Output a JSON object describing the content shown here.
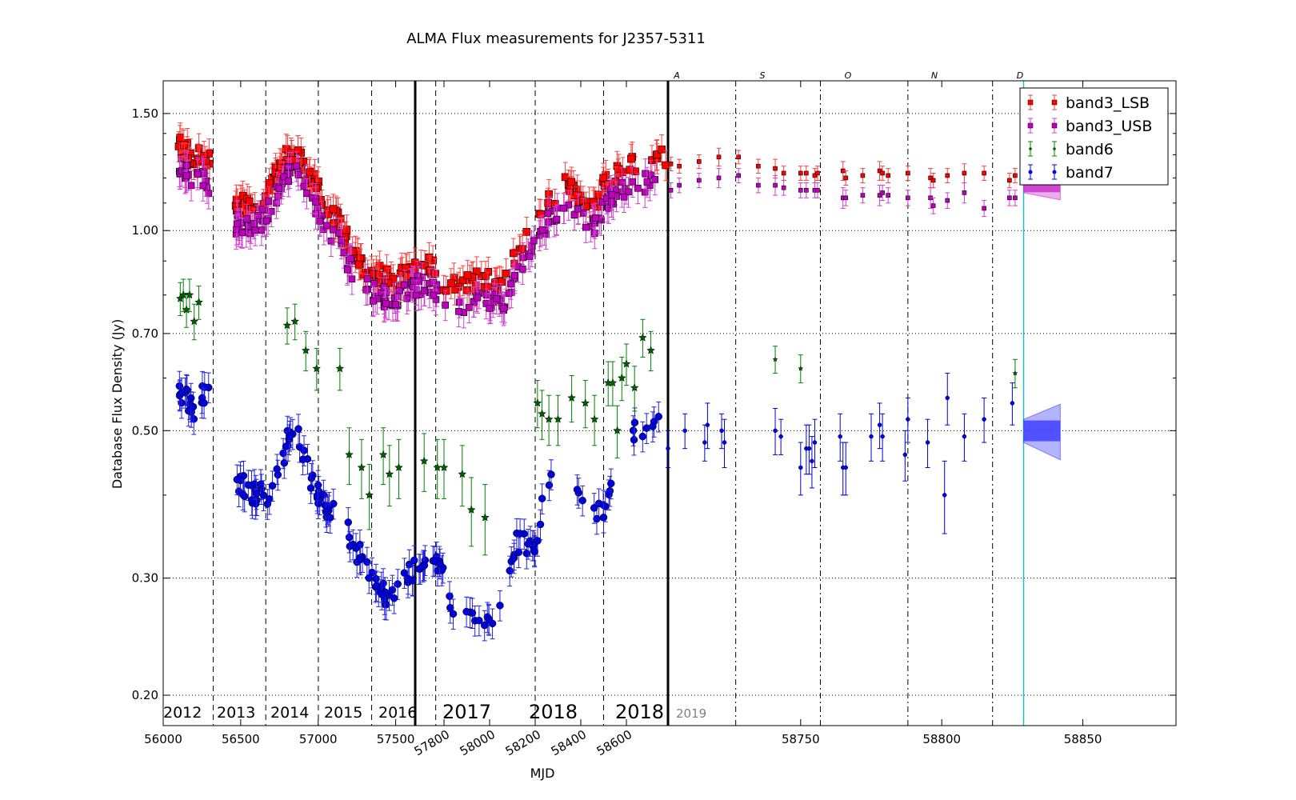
{
  "chart_data": {
    "type": "scatter",
    "title": "ALMA Flux measurements for J2357-5311",
    "xlabel": "MJD",
    "ylabel": "Database Flux Density (Jy)",
    "yscale": "log",
    "ylim": [
      0.18,
      1.68
    ],
    "ytick_labels": [
      "0.20",
      "0.30",
      "0.50",
      "0.70",
      "1.00",
      "1.50"
    ],
    "grid": "horizontal dotted",
    "legend_position": "top-right",
    "series": [
      {
        "name": "band3_LSB",
        "marker": "square",
        "color": "#ff0000",
        "err_color": "#ff4040",
        "recent": [
          [
            58704,
            1.26,
            0.03
          ],
          [
            58707,
            1.25,
            0.03
          ],
          [
            58714,
            1.27,
            0.03
          ],
          [
            58721,
            1.29,
            0.04
          ],
          [
            58728,
            1.29,
            0.03
          ],
          [
            58735,
            1.25,
            0.03
          ],
          [
            58741,
            1.24,
            0.04
          ],
          [
            58744,
            1.22,
            0.03
          ],
          [
            58750,
            1.22,
            0.03
          ],
          [
            58752,
            1.22,
            0.03
          ],
          [
            58755,
            1.21,
            0.03
          ],
          [
            58756,
            1.22,
            0.03
          ],
          [
            58765,
            1.23,
            0.04
          ],
          [
            58766,
            1.2,
            0.03
          ],
          [
            58772,
            1.21,
            0.03
          ],
          [
            58778,
            1.23,
            0.04
          ],
          [
            58779,
            1.22,
            0.03
          ],
          [
            58781,
            1.21,
            0.03
          ],
          [
            58788,
            1.22,
            0.03
          ],
          [
            58796,
            1.2,
            0.04
          ],
          [
            58797,
            1.19,
            0.03
          ],
          [
            58802,
            1.21,
            0.03
          ],
          [
            58808,
            1.22,
            0.04
          ],
          [
            58815,
            1.22,
            0.03
          ],
          [
            58824,
            1.19,
            0.03
          ],
          [
            58826,
            1.21,
            0.03
          ]
        ]
      },
      {
        "name": "band3_USB",
        "marker": "square",
        "color": "#bf00bf",
        "err_color": "#d040d0",
        "recent": [
          [
            58704,
            1.15,
            0.03
          ],
          [
            58707,
            1.17,
            0.03
          ],
          [
            58714,
            1.19,
            0.03
          ],
          [
            58721,
            1.2,
            0.04
          ],
          [
            58728,
            1.21,
            0.03
          ],
          [
            58735,
            1.17,
            0.03
          ],
          [
            58741,
            1.17,
            0.04
          ],
          [
            58744,
            1.16,
            0.03
          ],
          [
            58750,
            1.15,
            0.03
          ],
          [
            58752,
            1.15,
            0.03
          ],
          [
            58755,
            1.15,
            0.03
          ],
          [
            58756,
            1.15,
            0.03
          ],
          [
            58765,
            1.12,
            0.04
          ],
          [
            58766,
            1.12,
            0.03
          ],
          [
            58772,
            1.13,
            0.03
          ],
          [
            58778,
            1.13,
            0.04
          ],
          [
            58779,
            1.14,
            0.03
          ],
          [
            58781,
            1.13,
            0.03
          ],
          [
            58788,
            1.12,
            0.03
          ],
          [
            58796,
            1.12,
            0.04
          ],
          [
            58797,
            1.09,
            0.03
          ],
          [
            58802,
            1.11,
            0.03
          ],
          [
            58808,
            1.14,
            0.04
          ],
          [
            58815,
            1.08,
            0.03
          ],
          [
            58824,
            1.12,
            0.03
          ],
          [
            58826,
            1.12,
            0.03
          ]
        ]
      },
      {
        "name": "band6",
        "marker": "star",
        "color": "#006000",
        "err_color": "#008000",
        "recent": [
          [
            58741,
            0.64,
            0.03
          ],
          [
            58750,
            0.62,
            0.03
          ],
          [
            58826,
            0.61,
            0.03
          ]
        ]
      },
      {
        "name": "band7",
        "marker": "circle",
        "color": "#0000ff",
        "err_color": "#0000d0",
        "recent": [
          [
            58703,
            0.47,
            0.03
          ],
          [
            58709,
            0.5,
            0.03
          ],
          [
            58716,
            0.48,
            0.03
          ],
          [
            58717,
            0.51,
            0.04
          ],
          [
            58722,
            0.5,
            0.03
          ],
          [
            58723,
            0.48,
            0.04
          ],
          [
            58741,
            0.5,
            0.04
          ],
          [
            58743,
            0.49,
            0.03
          ],
          [
            58750,
            0.44,
            0.04
          ],
          [
            58752,
            0.47,
            0.04
          ],
          [
            58753,
            0.47,
            0.04
          ],
          [
            58754,
            0.45,
            0.04
          ],
          [
            58755,
            0.48,
            0.04
          ],
          [
            58764,
            0.49,
            0.04
          ],
          [
            58765,
            0.44,
            0.04
          ],
          [
            58766,
            0.44,
            0.04
          ],
          [
            58775,
            0.49,
            0.04
          ],
          [
            58778,
            0.51,
            0.04
          ],
          [
            58779,
            0.49,
            0.04
          ],
          [
            58787,
            0.46,
            0.04
          ],
          [
            58788,
            0.52,
            0.04
          ],
          [
            58795,
            0.48,
            0.04
          ],
          [
            58801,
            0.4,
            0.05
          ],
          [
            58802,
            0.56,
            0.05
          ],
          [
            58808,
            0.49,
            0.04
          ],
          [
            58815,
            0.52,
            0.04
          ],
          [
            58825,
            0.55,
            0.04
          ]
        ]
      }
    ],
    "historic_axis": {
      "tick_labels": [
        "56000",
        "56500",
        "57000",
        "57500",
        "57800",
        "58000",
        "58200",
        "58400",
        "58600"
      ],
      "segment_labels": [
        "2012",
        "2013",
        "2014",
        "2015",
        "2016",
        "2017",
        "2018",
        "2018"
      ],
      "segment_note": "left part of the axis is a compressed time axis of older seasons"
    },
    "recent_axis": {
      "xlim": [
        58703,
        58883
      ],
      "tick_labels": [
        "58750",
        "58800",
        "58850"
      ],
      "month_labels": [
        "A",
        "S",
        "O",
        "N",
        "D"
      ],
      "month_boundaries_mjd": [
        58727,
        58757,
        58788,
        58818
      ],
      "current_date_mjd": 58829,
      "segment_label": "2019"
    },
    "forecast": {
      "start_mjd": 58829,
      "end_mjd": 58842,
      "band3_LSB": [
        1.24,
        0.02
      ],
      "band3_USB": [
        1.16,
        0.02
      ],
      "band7": [
        0.5,
        0.02
      ]
    },
    "colors": {
      "band3_LSB_forecast": "#ff6060",
      "band3_USB_forecast": "#cc33cc",
      "band7_forecast": "#4040ff",
      "current_line": "#20c0c0"
    }
  }
}
